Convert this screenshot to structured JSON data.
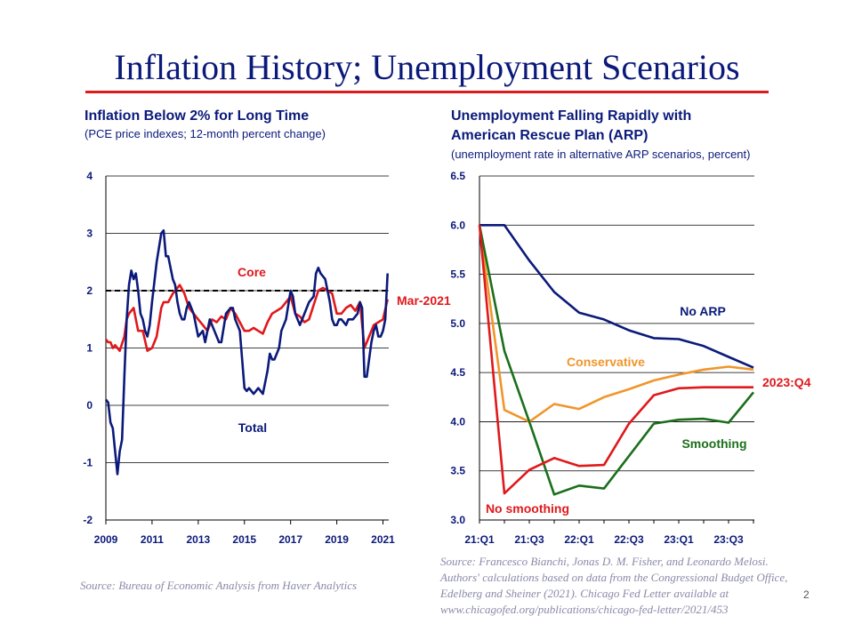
{
  "slide": {
    "title": "Inflation History; Unemployment Scenarios",
    "page_number": "2"
  },
  "left": {
    "title": "Inflation Below 2% for Long Time",
    "subtitle": "(PCE price indexes; 12-month percent change)",
    "source": "Source: Bureau of Economic Analysis from Haver Analytics"
  },
  "right": {
    "title_line1": "Unemployment Falling Rapidly with",
    "title_line2": "American Rescue Plan (ARP)",
    "subtitle": "(unemployment  rate in alternative ARP scenarios, percent)",
    "source": "Source: Francesco Bianchi, Jonas D. M. Fisher, and Leonardo Melosi. Authors' calculations based on data from the Congressional Budget Office, Edelberg and Sheiner (2021). Chicago Fed Letter available at www.chicagofed.org/publications/chicago-fed-letter/2021/453"
  },
  "colors": {
    "navy": "#0b1a7a",
    "red": "#e0191c",
    "orange": "#f0962a",
    "green": "#1b6f1b"
  },
  "chart_data": [
    {
      "type": "line",
      "title": "Inflation Below 2% for Long Time",
      "ylim": [
        -2,
        4
      ],
      "yticks": [
        -2,
        -1,
        0,
        1,
        2,
        3,
        4
      ],
      "xlim": [
        2009,
        2021.25
      ],
      "xticks": [
        2009,
        2011,
        2013,
        2015,
        2017,
        2019,
        2021
      ],
      "reference_line": {
        "y": 2,
        "style": "dashed"
      },
      "annotations": {
        "core": "Core",
        "total": "Total",
        "date": "Mar-2021"
      },
      "series": [
        {
          "name": "Total",
          "color": "#0b1a7a",
          "x": [
            2009.0,
            2009.1,
            2009.2,
            2009.3,
            2009.4,
            2009.5,
            2009.6,
            2009.7,
            2009.8,
            2009.9,
            2010.0,
            2010.1,
            2010.2,
            2010.3,
            2010.4,
            2010.5,
            2010.6,
            2010.7,
            2010.8,
            2010.9,
            2011.0,
            2011.2,
            2011.4,
            2011.5,
            2011.6,
            2011.7,
            2011.8,
            2011.9,
            2012.0,
            2012.1,
            2012.2,
            2012.3,
            2012.4,
            2012.5,
            2012.6,
            2012.8,
            2013.0,
            2013.2,
            2013.3,
            2013.5,
            2013.7,
            2013.9,
            2014.0,
            2014.2,
            2014.4,
            2014.5,
            2014.6,
            2014.8,
            2015.0,
            2015.1,
            2015.2,
            2015.4,
            2015.5,
            2015.6,
            2015.8,
            2016.0,
            2016.1,
            2016.2,
            2016.3,
            2016.5,
            2016.6,
            2016.8,
            2017.0,
            2017.1,
            2017.2,
            2017.4,
            2017.5,
            2017.7,
            2017.8,
            2018.0,
            2018.1,
            2018.2,
            2018.3,
            2018.5,
            2018.6,
            2018.7,
            2018.8,
            2018.9,
            2019.0,
            2019.1,
            2019.2,
            2019.4,
            2019.5,
            2019.7,
            2019.9,
            2020.0,
            2020.1,
            2020.2,
            2020.3,
            2020.4,
            2020.5,
            2020.6,
            2020.7,
            2020.8,
            2020.9,
            2021.0,
            2021.1,
            2021.2
          ],
          "values": [
            0.1,
            0.05,
            -0.3,
            -0.4,
            -0.8,
            -1.2,
            -0.8,
            -0.6,
            0.5,
            1.5,
            2.1,
            2.35,
            2.2,
            2.3,
            2.0,
            1.6,
            1.5,
            1.3,
            1.2,
            1.4,
            1.8,
            2.5,
            3.0,
            3.05,
            2.6,
            2.6,
            2.4,
            2.2,
            2.1,
            1.8,
            1.6,
            1.5,
            1.5,
            1.7,
            1.8,
            1.6,
            1.2,
            1.3,
            1.1,
            1.5,
            1.3,
            1.1,
            1.1,
            1.6,
            1.7,
            1.7,
            1.5,
            1.3,
            0.3,
            0.25,
            0.3,
            0.2,
            0.25,
            0.3,
            0.2,
            0.6,
            0.9,
            0.8,
            0.8,
            1.0,
            1.3,
            1.5,
            2.0,
            1.9,
            1.6,
            1.4,
            1.5,
            1.7,
            1.8,
            1.9,
            2.3,
            2.4,
            2.3,
            2.2,
            2.0,
            1.8,
            1.5,
            1.4,
            1.4,
            1.5,
            1.5,
            1.4,
            1.5,
            1.5,
            1.6,
            1.8,
            1.7,
            0.5,
            0.5,
            0.8,
            1.1,
            1.3,
            1.4,
            1.2,
            1.2,
            1.3,
            1.5,
            2.3
          ]
        },
        {
          "name": "Core",
          "color": "#e0191c",
          "x": [
            2009.0,
            2009.1,
            2009.2,
            2009.3,
            2009.4,
            2009.5,
            2009.6,
            2009.8,
            2009.9,
            2010.0,
            2010.2,
            2010.4,
            2010.6,
            2010.8,
            2011.0,
            2011.2,
            2011.4,
            2011.5,
            2011.7,
            2011.9,
            2012.0,
            2012.2,
            2012.4,
            2012.6,
            2012.8,
            2013.0,
            2013.2,
            2013.4,
            2013.6,
            2013.8,
            2014.0,
            2014.2,
            2014.4,
            2014.6,
            2014.8,
            2015.0,
            2015.2,
            2015.4,
            2015.6,
            2015.8,
            2016.0,
            2016.2,
            2016.4,
            2016.6,
            2016.8,
            2017.0,
            2017.2,
            2017.4,
            2017.6,
            2017.8,
            2018.0,
            2018.2,
            2018.4,
            2018.6,
            2018.8,
            2019.0,
            2019.2,
            2019.4,
            2019.6,
            2019.8,
            2020.0,
            2020.2,
            2020.4,
            2020.6,
            2020.8,
            2021.0,
            2021.2
          ],
          "values": [
            1.15,
            1.1,
            1.1,
            1.0,
            1.05,
            1.0,
            0.95,
            1.2,
            1.5,
            1.6,
            1.7,
            1.3,
            1.3,
            0.95,
            1.0,
            1.2,
            1.7,
            1.8,
            1.8,
            1.95,
            2.0,
            2.1,
            1.95,
            1.7,
            1.6,
            1.5,
            1.4,
            1.3,
            1.5,
            1.45,
            1.55,
            1.5,
            1.7,
            1.6,
            1.45,
            1.3,
            1.3,
            1.35,
            1.3,
            1.25,
            1.45,
            1.6,
            1.65,
            1.7,
            1.8,
            1.9,
            1.6,
            1.55,
            1.45,
            1.5,
            1.75,
            2.0,
            2.05,
            2.0,
            1.95,
            1.6,
            1.6,
            1.7,
            1.75,
            1.65,
            1.8,
            1.0,
            1.2,
            1.4,
            1.45,
            1.5,
            1.85
          ]
        }
      ]
    },
    {
      "type": "line",
      "title": "Unemployment Falling Rapidly with American Rescue Plan (ARP)",
      "ylim": [
        3.0,
        6.5
      ],
      "yticks": [
        "3.0",
        "3.5",
        "4.0",
        "4.5",
        "5.0",
        "5.5",
        "6.0",
        "6.5"
      ],
      "categories": [
        "21:Q1",
        "21:Q2",
        "21:Q3",
        "21:Q4",
        "22:Q1",
        "22:Q2",
        "22:Q3",
        "22:Q4",
        "23:Q1",
        "23:Q2",
        "23:Q3",
        "23:Q4"
      ],
      "xtick_labels": [
        "21:Q1",
        "21:Q3",
        "22:Q1",
        "22:Q3",
        "23:Q1",
        "23:Q3"
      ],
      "end_label": "2023:Q4",
      "series": [
        {
          "name": "No ARP",
          "color": "#0b1a7a",
          "values": [
            6.0,
            6.0,
            5.64,
            5.32,
            5.11,
            5.04,
            4.93,
            4.85,
            4.84,
            4.77,
            4.66,
            4.55
          ]
        },
        {
          "name": "Conservative",
          "color": "#f0962a",
          "values": [
            6.0,
            4.12,
            4.0,
            4.18,
            4.13,
            4.25,
            4.33,
            4.42,
            4.48,
            4.53,
            4.56,
            4.53
          ]
        },
        {
          "name": "No smoothing",
          "color": "#e0191c",
          "values": [
            6.0,
            3.27,
            3.51,
            3.63,
            3.55,
            3.56,
            3.98,
            4.27,
            4.34,
            4.35,
            4.35,
            4.35
          ]
        },
        {
          "name": "Smoothing",
          "color": "#1b6f1b",
          "values": [
            6.0,
            4.72,
            4.0,
            3.26,
            3.35,
            3.32,
            3.65,
            3.98,
            4.02,
            4.03,
            3.99,
            4.3
          ]
        }
      ]
    }
  ]
}
